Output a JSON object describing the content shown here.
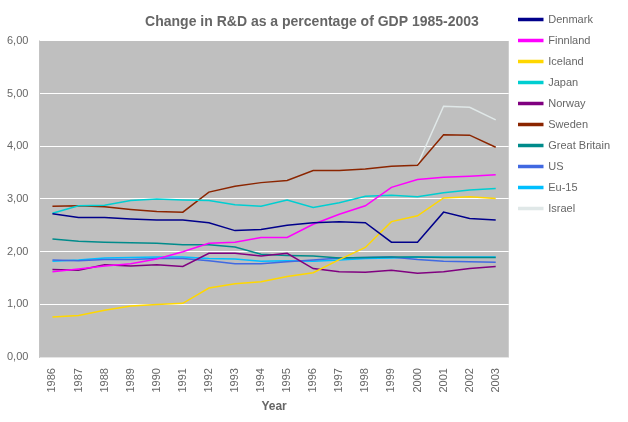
{
  "chart_data": {
    "type": "line",
    "title": "Change in R&D as a percentage of GDP 1985-2003",
    "xlabel": "Year",
    "x": [
      1986,
      1987,
      1988,
      1989,
      1990,
      1991,
      1992,
      1993,
      1994,
      1995,
      1996,
      1997,
      1998,
      1999,
      2000,
      2001,
      2002,
      2003
    ],
    "series": [
      {
        "name": "Denmark",
        "color": "#00008B",
        "values": [
          2.72,
          2.65,
          2.65,
          2.62,
          2.6,
          2.6,
          2.55,
          2.4,
          2.42,
          2.5,
          2.55,
          2.57,
          2.55,
          2.18,
          2.18,
          2.75,
          2.63,
          2.6
        ]
      },
      {
        "name": "Finnland",
        "color": "#FF00FF",
        "values": [
          1.62,
          1.67,
          1.73,
          1.77,
          1.86,
          2.0,
          2.16,
          2.18,
          2.27,
          2.27,
          2.52,
          2.71,
          2.87,
          3.22,
          3.37,
          3.41,
          3.43,
          3.46
        ]
      },
      {
        "name": "Iceland",
        "color": "#FFD700",
        "values": [
          0.76,
          0.79,
          0.89,
          0.97,
          1.0,
          1.02,
          1.31,
          1.39,
          1.43,
          1.53,
          1.6,
          1.85,
          2.08,
          2.57,
          2.68,
          3.02,
          3.04,
          3.01
        ]
      },
      {
        "name": "Japan",
        "color": "#00CED1",
        "values": [
          2.73,
          2.87,
          2.88,
          2.97,
          3.0,
          2.98,
          2.97,
          2.89,
          2.86,
          2.98,
          2.84,
          2.93,
          3.05,
          3.07,
          3.04,
          3.12,
          3.17,
          3.2
        ]
      },
      {
        "name": "Norway",
        "color": "#800080",
        "values": [
          1.66,
          1.65,
          1.75,
          1.73,
          1.75,
          1.72,
          1.97,
          1.97,
          1.92,
          1.97,
          1.68,
          1.62,
          1.61,
          1.65,
          1.59,
          1.62,
          1.68,
          1.72
        ]
      },
      {
        "name": "Sweden",
        "color": "#8B2500",
        "values": [
          2.86,
          2.87,
          2.85,
          2.8,
          2.76,
          2.75,
          3.13,
          3.24,
          3.31,
          3.35,
          3.54,
          3.54,
          3.57,
          3.62,
          3.64,
          4.22,
          4.21,
          3.98
        ]
      },
      {
        "name": "Great Britain",
        "color": "#008B8B",
        "values": [
          2.24,
          2.2,
          2.18,
          2.17,
          2.16,
          2.13,
          2.13,
          2.09,
          1.95,
          1.93,
          1.92,
          1.88,
          1.89,
          1.9,
          1.9,
          1.89,
          1.89,
          1.89
        ]
      },
      {
        "name": "US",
        "color": "#4169E1",
        "values": [
          1.84,
          1.83,
          1.85,
          1.85,
          1.87,
          1.87,
          1.83,
          1.77,
          1.77,
          1.81,
          1.84,
          1.88,
          1.89,
          1.9,
          1.85,
          1.82,
          1.81,
          1.8
        ]
      },
      {
        "name": "Eu-15",
        "color": "#00BFFF",
        "values": [
          1.82,
          1.84,
          1.88,
          1.89,
          1.9,
          1.9,
          1.87,
          1.86,
          1.82,
          1.83,
          1.82,
          1.84,
          1.87,
          1.88,
          1.9,
          1.9,
          1.9,
          1.9
        ]
      },
      {
        "name": "Israel",
        "color": "#E0E8E8",
        "values": [
          null,
          null,
          null,
          null,
          null,
          null,
          null,
          null,
          null,
          null,
          null,
          null,
          null,
          null,
          3.65,
          4.76,
          4.74,
          4.5
        ]
      }
    ],
    "xlim": [
      1985.5,
      2003.5
    ],
    "xticks": [
      1986,
      1987,
      1988,
      1989,
      1990,
      1991,
      1992,
      1993,
      1994,
      1995,
      1996,
      1997,
      1998,
      1999,
      2000,
      2001,
      2002,
      2003
    ],
    "ylim": [
      0.0,
      6.0
    ],
    "yticks": [
      {
        "value": 0.0,
        "label": "0,00"
      },
      {
        "value": 1.0,
        "label": "1,00"
      },
      {
        "value": 2.0,
        "label": "2,00"
      },
      {
        "value": 3.0,
        "label": "3,00"
      },
      {
        "value": 4.0,
        "label": "4,00"
      },
      {
        "value": 5.0,
        "label": "5,00"
      },
      {
        "value": 6.0,
        "label": "6,00"
      }
    ],
    "grid": "y",
    "legend": "right"
  }
}
